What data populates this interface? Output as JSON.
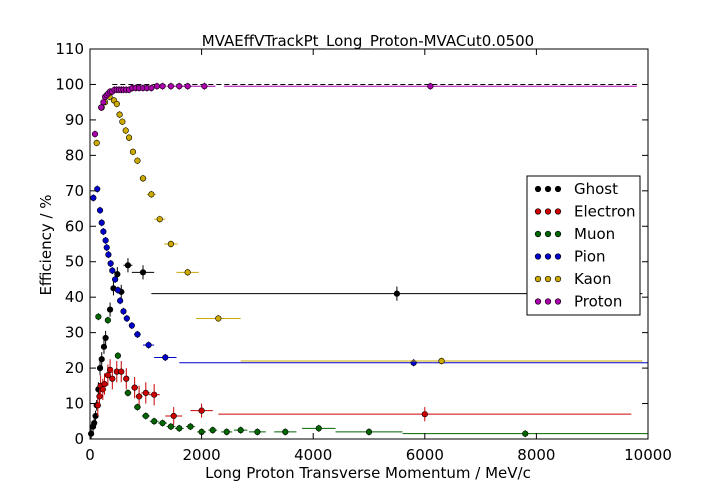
{
  "chart_data": {
    "type": "scatter",
    "title": "MVAEffVTrackPt_Long_Proton-MVACut0.0500",
    "xlabel": "Long Proton Transverse Momentum / MeV/c",
    "ylabel": "Efficiency / %",
    "xlim": [
      0,
      10000
    ],
    "ylim": [
      0,
      110
    ],
    "xticks": [
      0,
      2000,
      4000,
      6000,
      8000,
      10000
    ],
    "yticks": [
      0,
      10,
      20,
      30,
      40,
      50,
      60,
      70,
      80,
      90,
      100,
      110
    ],
    "grid": false,
    "legend_position": "right",
    "reference_line": {
      "y": 100,
      "style": "dashed",
      "x": [
        400,
        9800
      ]
    },
    "series": [
      {
        "name": "Ghost",
        "color": "#000000",
        "points": [
          [
            20,
            1.5,
            20,
            1.5
          ],
          [
            55,
            3.5,
            15,
            1.5
          ],
          [
            75,
            4.5,
            15,
            1.5
          ],
          [
            100,
            6.5,
            15,
            1.5
          ],
          [
            120,
            9.5,
            15,
            1.5
          ],
          [
            150,
            14,
            20,
            2
          ],
          [
            180,
            20,
            20,
            2
          ],
          [
            210,
            22.5,
            20,
            2
          ],
          [
            250,
            26,
            20,
            2
          ],
          [
            280,
            28.5,
            20,
            2
          ],
          [
            360,
            36.5,
            30,
            2
          ],
          [
            420,
            42.5,
            40,
            2
          ],
          [
            490,
            46.5,
            50,
            2
          ],
          [
            560,
            41.5,
            60,
            2
          ],
          [
            680,
            49,
            80,
            2
          ],
          [
            950,
            47,
            200,
            2
          ],
          [
            5500,
            41,
            4400,
            2
          ]
        ]
      },
      {
        "name": "Electron",
        "color": "#cc0000",
        "points": [
          [
            140,
            9.5,
            15,
            3
          ],
          [
            170,
            12,
            15,
            3
          ],
          [
            190,
            15,
            15,
            3
          ],
          [
            230,
            14,
            20,
            3
          ],
          [
            260,
            15.5,
            20,
            3
          ],
          [
            320,
            18,
            30,
            3
          ],
          [
            360,
            19.5,
            30,
            3
          ],
          [
            400,
            17,
            30,
            3
          ],
          [
            480,
            19,
            40,
            3
          ],
          [
            560,
            19,
            40,
            3
          ],
          [
            650,
            17,
            50,
            3
          ],
          [
            800,
            14.5,
            60,
            3
          ],
          [
            880,
            12,
            60,
            3
          ],
          [
            1000,
            13,
            80,
            3
          ],
          [
            1150,
            12.5,
            100,
            3
          ],
          [
            1500,
            6.5,
            150,
            2.5
          ],
          [
            2000,
            8,
            200,
            2
          ],
          [
            6000,
            7,
            3700,
            2
          ]
        ]
      },
      {
        "name": "Muon",
        "color": "#006400",
        "points": [
          [
            150,
            34.5,
            40,
            1
          ],
          [
            320,
            33.5,
            40,
            1
          ],
          [
            500,
            23.5,
            50,
            1
          ],
          [
            680,
            13,
            60,
            1
          ],
          [
            850,
            9,
            60,
            1
          ],
          [
            1000,
            6.5,
            70,
            1
          ],
          [
            1150,
            5,
            80,
            1
          ],
          [
            1300,
            4.5,
            80,
            1
          ],
          [
            1450,
            3.5,
            80,
            1
          ],
          [
            1600,
            3,
            80,
            1
          ],
          [
            1800,
            3.5,
            80,
            1
          ],
          [
            2000,
            2,
            80,
            1
          ],
          [
            2200,
            2.5,
            80,
            1
          ],
          [
            2450,
            2,
            100,
            1
          ],
          [
            2700,
            2.5,
            120,
            1
          ],
          [
            3000,
            2,
            150,
            1
          ],
          [
            3500,
            2,
            200,
            1
          ],
          [
            4100,
            3,
            300,
            1
          ],
          [
            5000,
            2,
            600,
            1
          ],
          [
            7800,
            1.5,
            2200,
            1
          ]
        ]
      },
      {
        "name": "Pion",
        "color": "#0000cc",
        "points": [
          [
            60,
            68,
            20,
            1
          ],
          [
            130,
            70.5,
            20,
            1
          ],
          [
            180,
            64.5,
            20,
            1
          ],
          [
            210,
            61,
            20,
            1
          ],
          [
            240,
            58.5,
            20,
            1
          ],
          [
            280,
            56,
            25,
            1
          ],
          [
            300,
            54,
            25,
            1
          ],
          [
            330,
            52,
            25,
            1
          ],
          [
            370,
            49.5,
            25,
            1
          ],
          [
            400,
            47.5,
            30,
            1
          ],
          [
            450,
            45,
            30,
            1
          ],
          [
            500,
            42,
            30,
            1
          ],
          [
            540,
            39,
            40,
            1
          ],
          [
            600,
            36,
            40,
            1
          ],
          [
            660,
            34,
            40,
            1
          ],
          [
            750,
            32,
            50,
            1
          ],
          [
            850,
            29.5,
            60,
            1
          ],
          [
            1050,
            26.5,
            100,
            1
          ],
          [
            1350,
            23,
            200,
            1
          ],
          [
            5800,
            21.5,
            4200,
            1
          ]
        ]
      },
      {
        "name": "Kaon",
        "color": "#ccaa00",
        "points": [
          [
            120,
            83.5,
            30,
            1
          ],
          [
            210,
            93.5,
            20,
            1
          ],
          [
            270,
            95,
            20,
            1
          ],
          [
            350,
            96.5,
            30,
            1
          ],
          [
            430,
            95.5,
            30,
            1
          ],
          [
            480,
            94.5,
            30,
            1
          ],
          [
            530,
            91.5,
            30,
            1
          ],
          [
            580,
            89.5,
            30,
            1
          ],
          [
            640,
            87,
            30,
            1
          ],
          [
            700,
            85,
            40,
            1
          ],
          [
            770,
            81,
            40,
            1
          ],
          [
            850,
            78.5,
            50,
            1
          ],
          [
            950,
            73.5,
            60,
            1
          ],
          [
            1100,
            69,
            80,
            1
          ],
          [
            1250,
            62,
            100,
            1
          ],
          [
            1450,
            55,
            120,
            1
          ],
          [
            1750,
            47,
            200,
            1
          ],
          [
            2300,
            34,
            400,
            1
          ],
          [
            6300,
            22,
            3600,
            1
          ]
        ]
      },
      {
        "name": "Proton",
        "color": "#aa00aa",
        "points": [
          [
            90,
            86,
            30,
            1
          ],
          [
            200,
            93.5,
            20,
            1
          ],
          [
            240,
            95,
            20,
            1
          ],
          [
            270,
            96.5,
            20,
            1
          ],
          [
            300,
            97,
            20,
            1
          ],
          [
            330,
            97.5,
            20,
            1
          ],
          [
            360,
            98,
            20,
            1
          ],
          [
            400,
            98,
            20,
            1
          ],
          [
            440,
            98.5,
            20,
            1
          ],
          [
            480,
            98.5,
            20,
            1
          ],
          [
            520,
            98.5,
            20,
            1
          ],
          [
            560,
            98.5,
            20,
            1
          ],
          [
            600,
            98.5,
            25,
            1
          ],
          [
            650,
            98.5,
            25,
            1
          ],
          [
            700,
            98.5,
            25,
            1
          ],
          [
            760,
            99,
            30,
            1
          ],
          [
            820,
            99,
            30,
            1
          ],
          [
            880,
            99,
            30,
            1
          ],
          [
            950,
            99,
            40,
            1
          ],
          [
            1020,
            99,
            40,
            1
          ],
          [
            1100,
            99,
            50,
            1
          ],
          [
            1200,
            99.5,
            60,
            1
          ],
          [
            1300,
            99.5,
            60,
            1
          ],
          [
            1450,
            99.5,
            80,
            1
          ],
          [
            1600,
            99.5,
            100,
            1
          ],
          [
            1750,
            99.5,
            100,
            1
          ],
          [
            2050,
            99.5,
            200,
            1
          ],
          [
            6100,
            99.5,
            3700,
            1
          ]
        ]
      }
    ]
  }
}
